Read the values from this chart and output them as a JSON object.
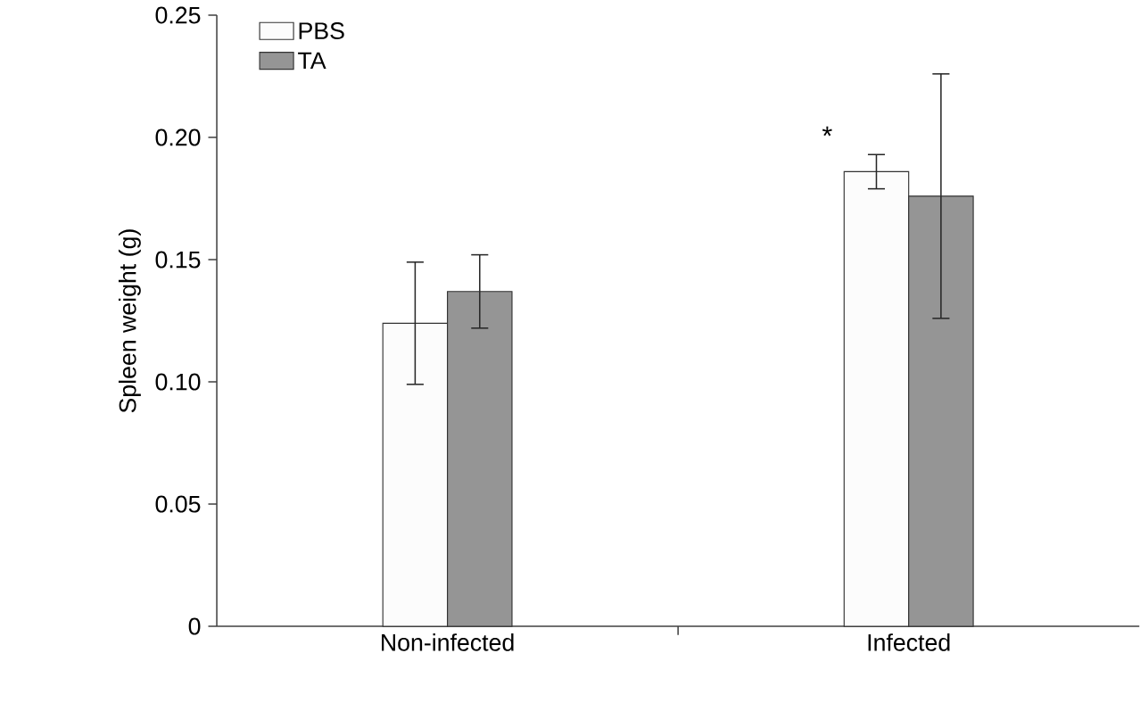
{
  "chart_data": {
    "type": "bar",
    "ylabel": "Spleen weight (g)",
    "categories": [
      "Non-infected",
      "Infected"
    ],
    "series": [
      {
        "name": "PBS",
        "color": "#fcfcfc",
        "values": [
          0.124,
          0.186
        ],
        "errors": [
          0.025,
          0.007
        ]
      },
      {
        "name": "TA",
        "color": "#959595",
        "values": [
          0.137,
          0.176
        ],
        "errors": [
          0.015,
          0.05
        ]
      }
    ],
    "ylim": [
      0,
      0.25
    ],
    "yticks": [
      0,
      0.05,
      {
        "value": 0.1,
        "label": "0.10"
      },
      0.15,
      {
        "value": 0.2,
        "label": "0.20"
      },
      0.25
    ],
    "legend": "top left",
    "grid": false,
    "annotations": [
      "*"
    ]
  }
}
